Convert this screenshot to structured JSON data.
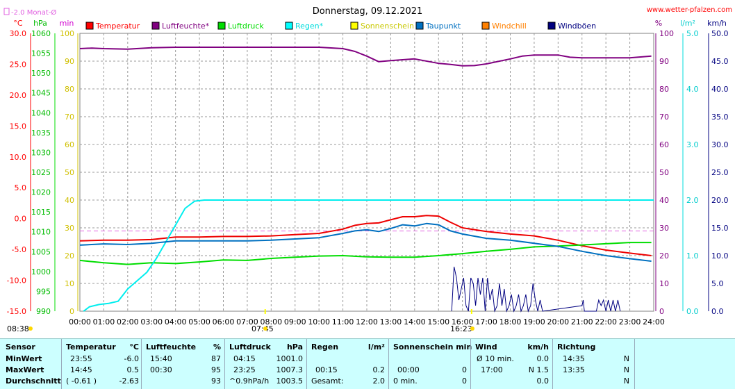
{
  "header": {
    "title": "Donnerstag, 09.12.2021",
    "site": "www.wetter-pfalzen.com",
    "month_avg_label": "-2.0 Monat-Ø"
  },
  "legend": [
    {
      "label": "Temperatur",
      "color": "#ff0000"
    },
    {
      "label": "Luftfeuchte*",
      "color": "#800080"
    },
    {
      "label": "Luftdruck",
      "color": "#00dd00"
    },
    {
      "label": "Regen*",
      "color": "#00ffff"
    },
    {
      "label": "Sonnenschein",
      "color": "#ffff00"
    },
    {
      "label": "Taupunkt",
      "color": "#0070c0"
    },
    {
      "label": "Windchill",
      "color": "#ff8000"
    },
    {
      "label": "Windböen",
      "color": "#000080"
    }
  ],
  "colors": {
    "temperature": "#ee0000",
    "humidity": "#800080",
    "pressure": "#00dd00",
    "rain": "#00eeee",
    "dewpoint": "#0070c0",
    "gusts": "#000080",
    "sun": "#ffff00",
    "grid": "#999999",
    "monthavg": "#e060e0",
    "summary_bg": "#ccffff"
  },
  "markers": {
    "sunrise": "07:45",
    "sunset": "16:23",
    "left_time": "08:38"
  },
  "chart_data": {
    "type": "line",
    "title": "Donnerstag, 09.12.2021",
    "x_ticks": [
      "00:00",
      "01:00",
      "02:00",
      "03:00",
      "04:00",
      "05:00",
      "06:00",
      "07:00",
      "08:00",
      "09:00",
      "10:00",
      "11:00",
      "12:00",
      "13:00",
      "14:00",
      "15:00",
      "16:00",
      "17:00",
      "18:00",
      "19:00",
      "20:00",
      "21:00",
      "22:00",
      "23:00",
      "24:00"
    ],
    "axes": {
      "temperature": {
        "unit": "°C",
        "range": [
          -15,
          30
        ],
        "ticks": [
          "30.0",
          "25.0",
          "20.0",
          "15.0",
          "10.0",
          "5.0",
          "0.0",
          "-5.0",
          "-10.0",
          "-15.0"
        ]
      },
      "pressure": {
        "unit": "hPa",
        "range": [
          990,
          1060
        ],
        "ticks": [
          "1060",
          "1055",
          "1050",
          "1045",
          "1040",
          "1035",
          "1030",
          "1025",
          "1020",
          "1015",
          "1010",
          "1005",
          "1000",
          "995",
          "990"
        ]
      },
      "minutes": {
        "unit": "min",
        "range": [
          0,
          100
        ],
        "ticks": [
          "100",
          "90",
          "80",
          "70",
          "60",
          "50",
          "40",
          "30",
          "20",
          "10",
          "0"
        ]
      },
      "humidity": {
        "unit": "%",
        "range": [
          0,
          100
        ],
        "ticks": [
          "100",
          "90",
          "80",
          "70",
          "60",
          "50",
          "40",
          "30",
          "20",
          "10",
          "0"
        ]
      },
      "rain": {
        "unit": "l/m²",
        "range": [
          0,
          5
        ],
        "ticks": [
          "5.0",
          "4.0",
          "3.0",
          "2.0",
          "1.0",
          "0.0"
        ]
      },
      "wind": {
        "unit": "km/h",
        "range": [
          0,
          50
        ],
        "ticks": [
          "50.0",
          "45.0",
          "40.0",
          "35.0",
          "30.0",
          "25.0",
          "20.0",
          "15.0",
          "10.0",
          "5.0",
          "0.0"
        ]
      }
    },
    "month_avg_temperature": -2.0,
    "series": [
      {
        "name": "Temperatur",
        "axis": "temperature",
        "x": [
          0,
          1,
          2,
          3,
          4,
          5,
          6,
          7,
          8,
          9,
          10,
          11,
          11.5,
          12,
          12.5,
          13,
          13.5,
          14,
          14.5,
          15,
          15.5,
          16,
          17,
          18,
          19,
          20,
          21,
          22,
          23,
          23.9
        ],
        "y": [
          -3.6,
          -3.5,
          -3.5,
          -3.4,
          -3.0,
          -3.0,
          -2.9,
          -2.9,
          -2.8,
          -2.6,
          -2.4,
          -1.7,
          -1.1,
          -0.8,
          -0.7,
          -0.2,
          0.3,
          0.3,
          0.5,
          0.4,
          -0.6,
          -1.5,
          -2.1,
          -2.5,
          -2.8,
          -3.5,
          -4.4,
          -5.1,
          -5.6,
          -6.0
        ]
      },
      {
        "name": "Luftfeuchte*",
        "axis": "humidity",
        "x": [
          0,
          0.5,
          1,
          2,
          3,
          4,
          5,
          6,
          7,
          8,
          9,
          10,
          11,
          11.5,
          12,
          12.5,
          13,
          14,
          15,
          15.5,
          16,
          16.5,
          17,
          18,
          18.5,
          19,
          20,
          20.5,
          21,
          22,
          23,
          23.9
        ],
        "y": [
          94.5,
          94.7,
          94.5,
          94.3,
          94.8,
          95,
          95,
          95,
          95,
          95,
          95,
          95,
          94.5,
          93.5,
          91.8,
          89.8,
          90.2,
          90.8,
          89.2,
          88.8,
          88.3,
          88.4,
          89.0,
          90.8,
          91.8,
          92.2,
          92.2,
          91.4,
          91.2,
          91.2,
          91.2,
          91.8
        ]
      },
      {
        "name": "Luftdruck",
        "axis": "pressure",
        "x": [
          0,
          1,
          2,
          3,
          4,
          5,
          6,
          7,
          8,
          9,
          10,
          11,
          12,
          13,
          14,
          15,
          16,
          17,
          18,
          19,
          20,
          21,
          22,
          23,
          23.9
        ],
        "y": [
          1002.8,
          1002.2,
          1001.8,
          1002.2,
          1002.0,
          1002.4,
          1002.9,
          1002.8,
          1003.3,
          1003.6,
          1003.9,
          1004.0,
          1003.7,
          1003.6,
          1003.6,
          1004.0,
          1004.5,
          1005.1,
          1005.6,
          1006.2,
          1006.4,
          1006.7,
          1007.0,
          1007.3,
          1007.3
        ]
      },
      {
        "name": "Regen*",
        "axis": "rain",
        "x": [
          0.15,
          0.4,
          0.8,
          1.2,
          1.6,
          2.0,
          2.4,
          2.8,
          3.2,
          3.6,
          4.0,
          4.4,
          4.8,
          5.2,
          6,
          8,
          10,
          12,
          14,
          16,
          18,
          20,
          22,
          24
        ],
        "y": [
          0.0,
          0.08,
          0.12,
          0.14,
          0.18,
          0.4,
          0.55,
          0.7,
          0.95,
          1.25,
          1.55,
          1.85,
          1.98,
          2.0,
          2.0,
          2.0,
          2.0,
          2.0,
          2.0,
          2.0,
          2.0,
          2.0,
          2.0,
          2.0
        ]
      },
      {
        "name": "Taupunkt",
        "axis": "temperature",
        "x": [
          0,
          1,
          2,
          3,
          4,
          5,
          6,
          7,
          8,
          9,
          10,
          11,
          11.5,
          12,
          12.5,
          13,
          13.5,
          14,
          14.5,
          15,
          15.5,
          16,
          17,
          18,
          19,
          20,
          21,
          22,
          23,
          23.9
        ],
        "y": [
          -4.3,
          -4.1,
          -4.2,
          -4.0,
          -3.6,
          -3.6,
          -3.6,
          -3.6,
          -3.5,
          -3.3,
          -3.1,
          -2.4,
          -2.0,
          -1.8,
          -2.1,
          -1.6,
          -1.0,
          -1.2,
          -0.8,
          -1.0,
          -2.0,
          -2.5,
          -3.2,
          -3.5,
          -4.0,
          -4.5,
          -5.3,
          -6.0,
          -6.5,
          -6.9
        ]
      }
    ],
    "gusts": {
      "name": "Windböen",
      "axis": "wind",
      "x": [
        15.55,
        15.65,
        15.75,
        15.85,
        15.95,
        16.05,
        16.15,
        16.25,
        16.35,
        16.45,
        16.55,
        16.65,
        16.75,
        16.85,
        16.95,
        17.05,
        17.15,
        17.25,
        17.35,
        17.45,
        17.55,
        17.65,
        17.75,
        17.85,
        17.95,
        18.05,
        18.15,
        18.25,
        18.35,
        18.45,
        18.55,
        18.65,
        18.75,
        18.85,
        18.95,
        19.05,
        19.15,
        19.25,
        19.35,
        21.0,
        21.05,
        21.1,
        21.6,
        21.7,
        21.8,
        21.9,
        22.0,
        22.1,
        22.2,
        22.3,
        22.4,
        22.5,
        22.6
      ],
      "y": [
        0,
        8,
        6,
        2,
        4,
        6,
        1,
        0,
        6,
        5,
        1,
        6,
        3,
        6,
        0,
        6,
        2,
        4,
        0,
        1,
        5,
        1,
        4,
        0,
        1,
        3,
        0,
        1,
        3,
        0,
        1,
        3,
        0,
        1,
        5,
        2,
        0,
        2,
        0,
        1,
        2,
        0,
        0,
        2,
        1,
        2,
        0,
        2,
        0,
        2,
        0,
        2,
        0
      ]
    }
  },
  "summary": {
    "row_labels": [
      "Sensor",
      "MinWert",
      "MaxWert",
      "Durchschnitt"
    ],
    "temperature": {
      "header": "Temperatur",
      "unit": "°C",
      "min_time": "23:55",
      "min": "-6.0",
      "max_time": "14:45",
      "max": "0.5",
      "avg_a": "( -0.61 )",
      "avg_b": "-2.63"
    },
    "humidity": {
      "header": "Luftfeuchte",
      "unit": "%",
      "min_time": "15:40",
      "min": "87",
      "max_time": "00:30",
      "max": "95",
      "avg": "93"
    },
    "pressure": {
      "header": "Luftdruck",
      "unit": "hPa",
      "min_time": "04:15",
      "min": "1001.0",
      "max_time": "23:25",
      "max": "1007.3",
      "avg_a": "^0.9hPa/h",
      "avg_b": "1003.5"
    },
    "rain": {
      "header": "Regen",
      "unit": "l/m²",
      "max_time": "00:15",
      "max": "0.2",
      "avg_a": "Gesamt:",
      "avg_b": "2.0"
    },
    "sun": {
      "header": "Sonnenschein min",
      "unit": "",
      "max_time": "00:00",
      "max": "0",
      "avg_a": "0 min.",
      "avg_b": "0"
    },
    "wind": {
      "header": "Wind",
      "unit": "km/h",
      "min_label": "Ø 10 min.",
      "min": "0.0",
      "max_time": "17:00",
      "max": "N 1.5",
      "avg": "0.0"
    },
    "direction": {
      "header": "Richtung",
      "min_time": "14:35",
      "min": "N",
      "max_time": "13:35",
      "max": "N",
      "avg": "N"
    }
  }
}
